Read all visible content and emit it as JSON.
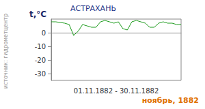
{
  "chart_data": {
    "type": "line",
    "title": "АСТРАХАНЬ",
    "subtitle": "ноябрь, 1882",
    "y_label": "t,°C",
    "x_label": "01.11.1882 - 30.11.1882",
    "source": "источник: гидрометцентр",
    "x": [
      1,
      2,
      3,
      4,
      5,
      6,
      7,
      8,
      9,
      10,
      11,
      12,
      13,
      14,
      15,
      16,
      17,
      18,
      19,
      20,
      21,
      22,
      23,
      24,
      25,
      26,
      27,
      28,
      29,
      30
    ],
    "values": [
      8,
      8,
      7.5,
      7,
      6,
      -2,
      1,
      6,
      5,
      4,
      4,
      8,
      9,
      8,
      7,
      8,
      3,
      2,
      8,
      9,
      8,
      7,
      4,
      4,
      7,
      8,
      7,
      7,
      6,
      6
    ],
    "color": "#1a9a1a",
    "xlim": [
      1,
      30
    ],
    "ylim": [
      -35,
      10
    ],
    "yticks": [
      -30,
      -20,
      -10,
      0
    ],
    "grid": false,
    "tick_labels": "y"
  }
}
